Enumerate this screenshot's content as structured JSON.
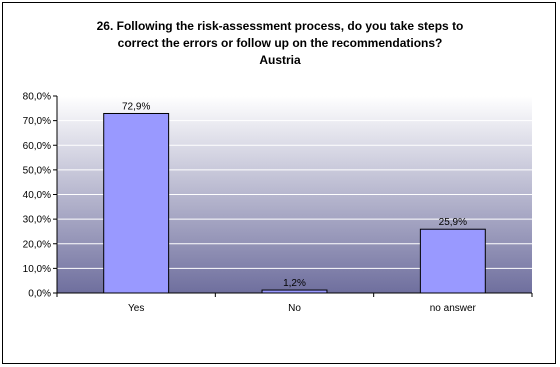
{
  "chart_data": {
    "type": "bar",
    "title_lines": [
      "26. Following the risk-assessment process, do you take steps to",
      "correct the errors or follow up on the recommendations?",
      "Austria"
    ],
    "categories": [
      "Yes",
      "No",
      "no answer"
    ],
    "values": [
      72.9,
      1.2,
      25.9
    ],
    "data_labels": [
      "72,9%",
      "1,2%",
      "25,9%"
    ],
    "ylim": [
      0,
      80
    ],
    "yticks": [
      0,
      10,
      20,
      30,
      40,
      50,
      60,
      70,
      80
    ],
    "ytick_labels": [
      "0,0%",
      "10,0%",
      "20,0%",
      "30,0%",
      "40,0%",
      "50,0%",
      "60,0%",
      "70,0%",
      "80,0%"
    ],
    "grid": true,
    "legend": "none",
    "colors": {
      "bar_fill": "#9999ff",
      "bar_stroke": "#000000",
      "plot_top": "#ffffff",
      "plot_bottom": "#6f6f9e",
      "grid": "#ffffff"
    }
  }
}
